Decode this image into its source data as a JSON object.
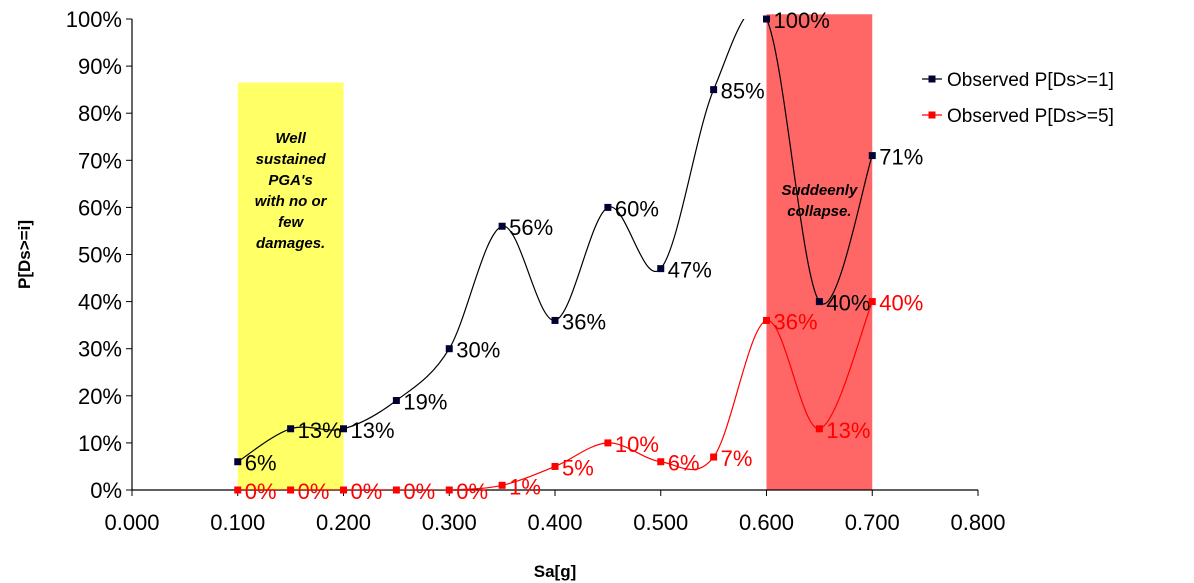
{
  "chart_data": {
    "type": "line",
    "title": "",
    "xlabel": "Sa[g]",
    "ylabel": "P[Ds>=i]",
    "xlim": [
      0,
      0.8
    ],
    "ylim": [
      0,
      1
    ],
    "x_ticks": [
      "0.000",
      "0.100",
      "0.200",
      "0.300",
      "0.400",
      "0.500",
      "0.600",
      "0.700",
      "0.800"
    ],
    "y_ticks": [
      "0%",
      "10%",
      "20%",
      "30%",
      "40%",
      "50%",
      "60%",
      "70%",
      "80%",
      "90%",
      "100%"
    ],
    "grid": false,
    "legend_position": "right",
    "series": [
      {
        "name": "Observed P[Ds>=1]",
        "color": "#000033",
        "line_color": "#000000",
        "x": [
          0.1,
          0.15,
          0.2,
          0.25,
          0.3,
          0.35,
          0.4,
          0.45,
          0.5,
          0.55,
          0.6,
          0.65,
          0.7
        ],
        "y": [
          0.06,
          0.13,
          0.13,
          0.19,
          0.3,
          0.56,
          0.36,
          0.6,
          0.47,
          0.85,
          1.0,
          0.4,
          0.71
        ],
        "labels": [
          "6%",
          "13%",
          "13%",
          "19%",
          "30%",
          "56%",
          "36%",
          "60%",
          "47%",
          "85%",
          "100%",
          "40%",
          "71%"
        ]
      },
      {
        "name": "Observed P[Ds>=5]",
        "color": "#ff0000",
        "line_color": "#ff0000",
        "x": [
          0.1,
          0.15,
          0.2,
          0.25,
          0.3,
          0.35,
          0.4,
          0.45,
          0.5,
          0.55,
          0.6,
          0.65,
          0.7
        ],
        "y": [
          0.0,
          0.0,
          0.0,
          0.0,
          0.0,
          0.01,
          0.05,
          0.1,
          0.06,
          0.07,
          0.36,
          0.13,
          0.4
        ],
        "labels": [
          "0%",
          "0%",
          "0%",
          "0%",
          "0%",
          "1%",
          "5%",
          "10%",
          "6%",
          "7%",
          "36%",
          "13%",
          "40%"
        ]
      }
    ],
    "regions": [
      {
        "x_from": 0.1,
        "x_to": 0.2,
        "y_top": 0.865,
        "color": "#ffff66",
        "text": [
          "Well",
          "sustained",
          "PGA's",
          "with no or",
          "few",
          "damages."
        ]
      },
      {
        "x_from": 0.6,
        "x_to": 0.7,
        "y_top": 1.01,
        "color": "#ff6666",
        "text": [
          "Suddeenly",
          "collapse."
        ]
      }
    ]
  }
}
